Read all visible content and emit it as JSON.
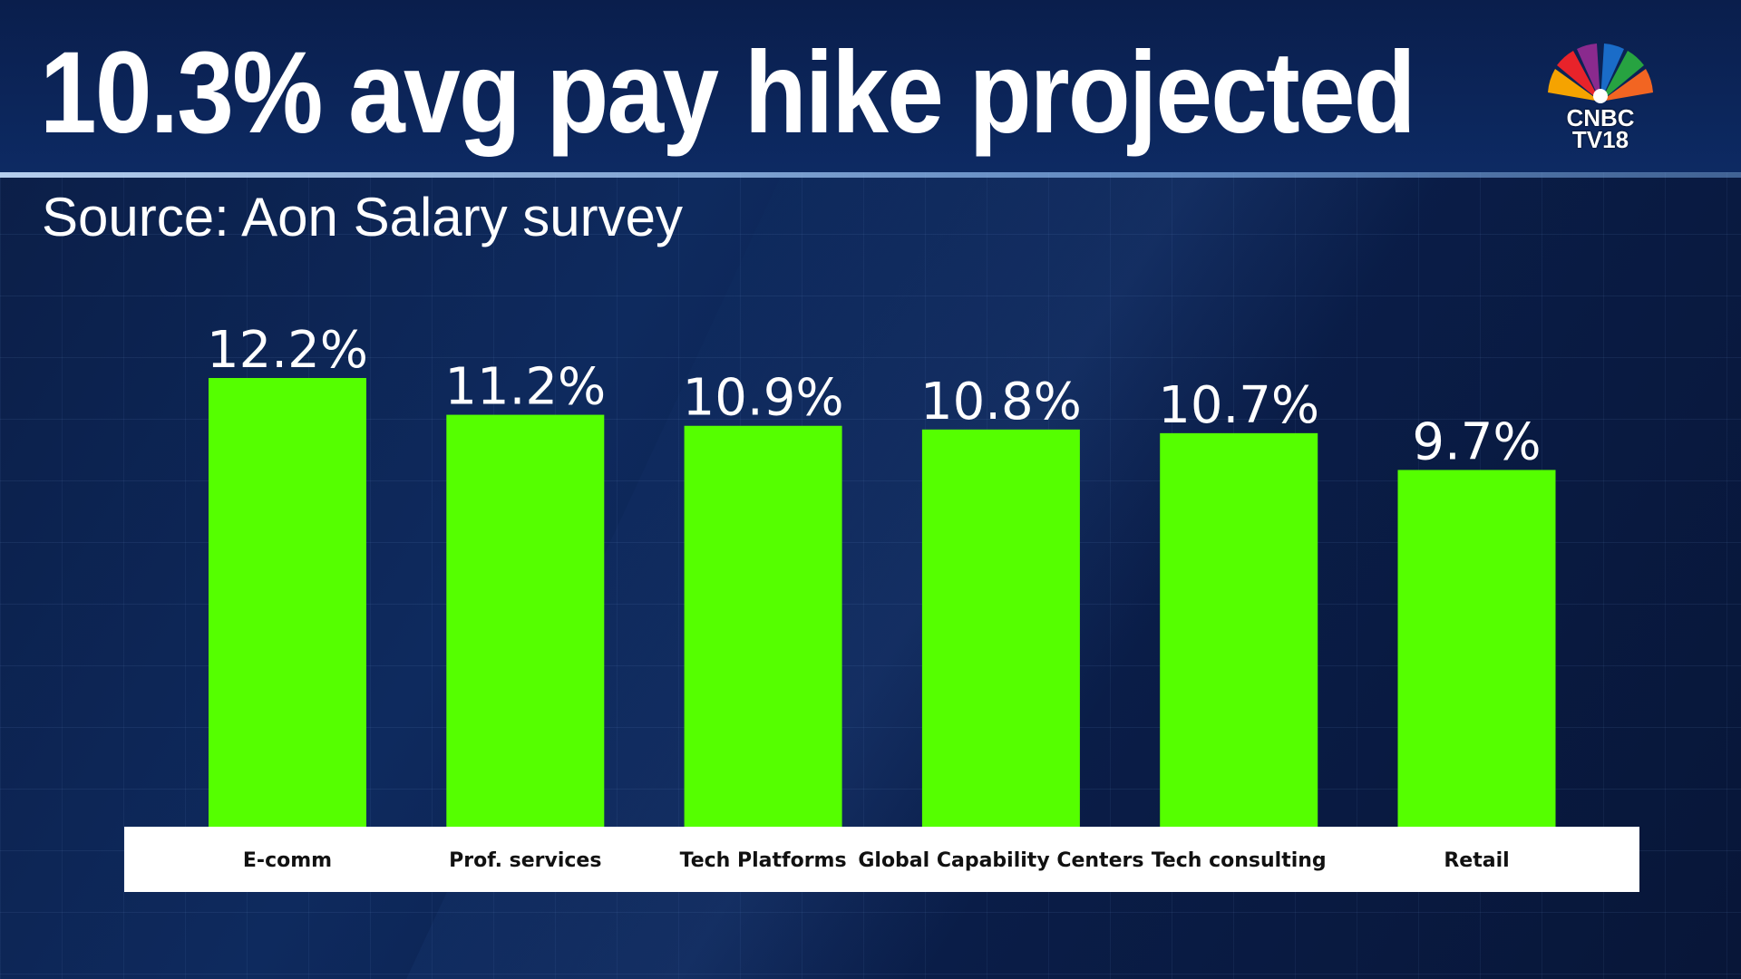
{
  "header": {
    "title": "10.3% avg pay hike projected",
    "subtitle": "Source: Aon Salary survey"
  },
  "logo": {
    "line1": "CNBC",
    "line2": "TV18",
    "icon": "peacock-icon"
  },
  "colors": {
    "bar": "#55ff00",
    "label_strip": "#ffffff",
    "background": "#0d2a5e"
  },
  "chart_data": {
    "type": "bar",
    "title": "10.3% avg pay hike projected",
    "subtitle": "Source: Aon Salary survey",
    "categories": [
      "E-comm",
      "Prof. services",
      "Tech Platforms",
      "Global Capability Centers",
      "Tech consulting",
      "Retail"
    ],
    "values": [
      12.2,
      11.2,
      10.9,
      10.8,
      10.7,
      9.7
    ],
    "value_labels": [
      "12.2%",
      "11.2%",
      "10.9%",
      "10.8%",
      "10.7%",
      "9.7%"
    ],
    "xlabel": "",
    "ylabel": "",
    "legend": "none",
    "grid": false
  }
}
